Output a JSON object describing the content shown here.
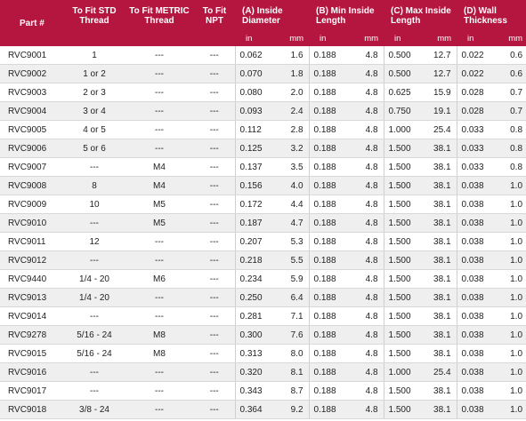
{
  "headers": {
    "part": "Part #",
    "std": "To Fit STD Thread",
    "metric": "To Fit METRIC Thread",
    "npt": "To Fit NPT",
    "a": "(A) Inside Diameter",
    "b": "(B) Min Inside Length",
    "c": "(C) Max Inside Length",
    "d": "(D) Wall Thickness"
  },
  "units": {
    "in": "in",
    "mm": "mm"
  },
  "rows": [
    {
      "part": "RVC9001",
      "std": "1",
      "metric": "---",
      "npt": "---",
      "a_in": "0.062",
      "a_mm": "1.6",
      "b_in": "0.188",
      "b_mm": "4.8",
      "c_in": "0.500",
      "c_mm": "12.7",
      "d_in": "0.022",
      "d_mm": "0.6"
    },
    {
      "part": "RVC9002",
      "std": "1 or 2",
      "metric": "---",
      "npt": "---",
      "a_in": "0.070",
      "a_mm": "1.8",
      "b_in": "0.188",
      "b_mm": "4.8",
      "c_in": "0.500",
      "c_mm": "12.7",
      "d_in": "0.022",
      "d_mm": "0.6"
    },
    {
      "part": "RVC9003",
      "std": "2 or 3",
      "metric": "---",
      "npt": "---",
      "a_in": "0.080",
      "a_mm": "2.0",
      "b_in": "0.188",
      "b_mm": "4.8",
      "c_in": "0.625",
      "c_mm": "15.9",
      "d_in": "0.028",
      "d_mm": "0.7"
    },
    {
      "part": "RVC9004",
      "std": "3 or 4",
      "metric": "---",
      "npt": "---",
      "a_in": "0.093",
      "a_mm": "2.4",
      "b_in": "0.188",
      "b_mm": "4.8",
      "c_in": "0.750",
      "c_mm": "19.1",
      "d_in": "0.028",
      "d_mm": "0.7"
    },
    {
      "part": "RVC9005",
      "std": "4 or 5",
      "metric": "---",
      "npt": "---",
      "a_in": "0.112",
      "a_mm": "2.8",
      "b_in": "0.188",
      "b_mm": "4.8",
      "c_in": "1.000",
      "c_mm": "25.4",
      "d_in": "0.033",
      "d_mm": "0.8"
    },
    {
      "part": "RVC9006",
      "std": "5 or 6",
      "metric": "---",
      "npt": "---",
      "a_in": "0.125",
      "a_mm": "3.2",
      "b_in": "0.188",
      "b_mm": "4.8",
      "c_in": "1.500",
      "c_mm": "38.1",
      "d_in": "0.033",
      "d_mm": "0.8"
    },
    {
      "part": "RVC9007",
      "std": "---",
      "metric": "M4",
      "npt": "---",
      "a_in": "0.137",
      "a_mm": "3.5",
      "b_in": "0.188",
      "b_mm": "4.8",
      "c_in": "1.500",
      "c_mm": "38.1",
      "d_in": "0.033",
      "d_mm": "0.8"
    },
    {
      "part": "RVC9008",
      "std": "8",
      "metric": "M4",
      "npt": "---",
      "a_in": "0.156",
      "a_mm": "4.0",
      "b_in": "0.188",
      "b_mm": "4.8",
      "c_in": "1.500",
      "c_mm": "38.1",
      "d_in": "0.038",
      "d_mm": "1.0"
    },
    {
      "part": "RVC9009",
      "std": "10",
      "metric": "M5",
      "npt": "---",
      "a_in": "0.172",
      "a_mm": "4.4",
      "b_in": "0.188",
      "b_mm": "4.8",
      "c_in": "1.500",
      "c_mm": "38.1",
      "d_in": "0.038",
      "d_mm": "1.0"
    },
    {
      "part": "RVC9010",
      "std": "---",
      "metric": "M5",
      "npt": "---",
      "a_in": "0.187",
      "a_mm": "4.7",
      "b_in": "0.188",
      "b_mm": "4.8",
      "c_in": "1.500",
      "c_mm": "38.1",
      "d_in": "0.038",
      "d_mm": "1.0"
    },
    {
      "part": "RVC9011",
      "std": "12",
      "metric": "---",
      "npt": "---",
      "a_in": "0.207",
      "a_mm": "5.3",
      "b_in": "0.188",
      "b_mm": "4.8",
      "c_in": "1.500",
      "c_mm": "38.1",
      "d_in": "0.038",
      "d_mm": "1.0"
    },
    {
      "part": "RVC9012",
      "std": "---",
      "metric": "---",
      "npt": "---",
      "a_in": "0.218",
      "a_mm": "5.5",
      "b_in": "0.188",
      "b_mm": "4.8",
      "c_in": "1.500",
      "c_mm": "38.1",
      "d_in": "0.038",
      "d_mm": "1.0"
    },
    {
      "part": "RVC9440",
      "std": "1/4 - 20",
      "metric": "M6",
      "npt": "---",
      "a_in": "0.234",
      "a_mm": "5.9",
      "b_in": "0.188",
      "b_mm": "4.8",
      "c_in": "1.500",
      "c_mm": "38.1",
      "d_in": "0.038",
      "d_mm": "1.0"
    },
    {
      "part": "RVC9013",
      "std": "1/4 - 20",
      "metric": "---",
      "npt": "---",
      "a_in": "0.250",
      "a_mm": "6.4",
      "b_in": "0.188",
      "b_mm": "4.8",
      "c_in": "1.500",
      "c_mm": "38.1",
      "d_in": "0.038",
      "d_mm": "1.0"
    },
    {
      "part": "RVC9014",
      "std": "---",
      "metric": "---",
      "npt": "---",
      "a_in": "0.281",
      "a_mm": "7.1",
      "b_in": "0.188",
      "b_mm": "4.8",
      "c_in": "1.500",
      "c_mm": "38.1",
      "d_in": "0.038",
      "d_mm": "1.0"
    },
    {
      "part": "RVC9278",
      "std": "5/16 - 24",
      "metric": "M8",
      "npt": "---",
      "a_in": "0.300",
      "a_mm": "7.6",
      "b_in": "0.188",
      "b_mm": "4.8",
      "c_in": "1.500",
      "c_mm": "38.1",
      "d_in": "0.038",
      "d_mm": "1.0"
    },
    {
      "part": "RVC9015",
      "std": "5/16 - 24",
      "metric": "M8",
      "npt": "---",
      "a_in": "0.313",
      "a_mm": "8.0",
      "b_in": "0.188",
      "b_mm": "4.8",
      "c_in": "1.500",
      "c_mm": "38.1",
      "d_in": "0.038",
      "d_mm": "1.0"
    },
    {
      "part": "RVC9016",
      "std": "---",
      "metric": "---",
      "npt": "---",
      "a_in": "0.320",
      "a_mm": "8.1",
      "b_in": "0.188",
      "b_mm": "4.8",
      "c_in": "1.000",
      "c_mm": "25.4",
      "d_in": "0.038",
      "d_mm": "1.0"
    },
    {
      "part": "RVC9017",
      "std": "---",
      "metric": "---",
      "npt": "---",
      "a_in": "0.343",
      "a_mm": "8.7",
      "b_in": "0.188",
      "b_mm": "4.8",
      "c_in": "1.500",
      "c_mm": "38.1",
      "d_in": "0.038",
      "d_mm": "1.0"
    },
    {
      "part": "RVC9018",
      "std": "3/8 - 24",
      "metric": "---",
      "npt": "---",
      "a_in": "0.364",
      "a_mm": "9.2",
      "b_in": "0.188",
      "b_mm": "4.8",
      "c_in": "1.500",
      "c_mm": "38.1",
      "d_in": "0.038",
      "d_mm": "1.0"
    }
  ],
  "colors": {
    "header": "#b5163f",
    "alt_row": "#efefef"
  }
}
